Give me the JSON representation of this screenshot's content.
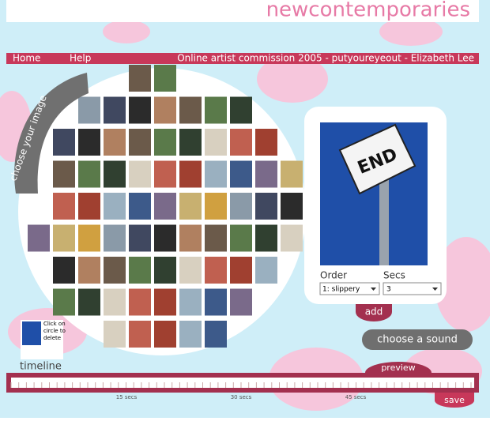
{
  "header": {
    "site_title": "newcontemporaries"
  },
  "nav": {
    "home": "Home",
    "help": "Help",
    "commission": "Online artist commission 2005 - putyoureyeout - Elizabeth Lee"
  },
  "chooser": {
    "tab": "choose your image"
  },
  "preview_panel": {
    "sign_text": "END",
    "order_label": "Order",
    "secs_label": "Secs",
    "order_value": "1: slippery",
    "secs_value": "3",
    "add_button": "add"
  },
  "sound": {
    "button": "choose a sound"
  },
  "timeline": {
    "label": "timeline",
    "hint": "Click on circle to delete",
    "preview_button": "preview",
    "save_button": "save",
    "marks": [
      "15 secs",
      "30 secs",
      "45 secs"
    ]
  }
}
